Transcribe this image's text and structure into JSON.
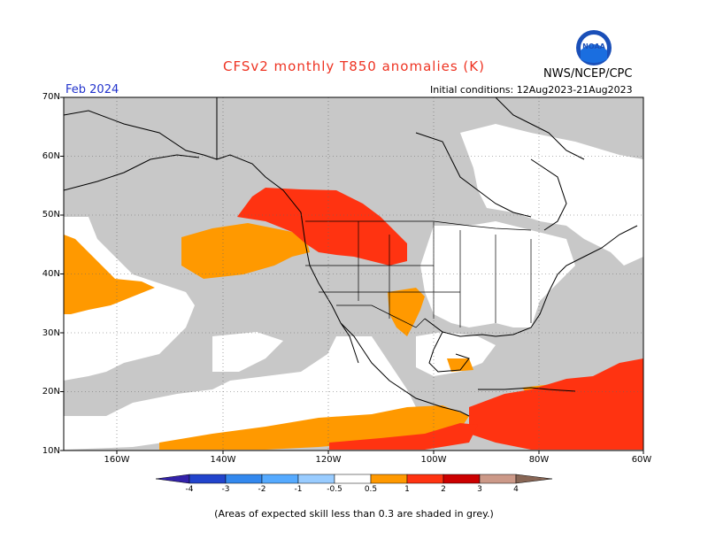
{
  "header": {
    "title": "CFSv2 monthly T850 anomalies (K)",
    "title_color": "#ee3322",
    "agency": "NWS/NCEP/CPC",
    "month": "Feb 2024",
    "month_color": "#2233cc",
    "init": "Initial conditions: 12Aug2023-21Aug2023",
    "logo_text": "NOAA"
  },
  "axes": {
    "lat_labels": [
      "70N",
      "60N",
      "50N",
      "40N",
      "30N",
      "20N",
      "10N"
    ],
    "lon_labels": [
      "160W",
      "140W",
      "120W",
      "100W",
      "80W",
      "60W"
    ]
  },
  "colorbar": {
    "labels": [
      "-4",
      "-3",
      "-2",
      "-1",
      "-0.5",
      "0.5",
      "1",
      "2",
      "3",
      "4"
    ],
    "colors": [
      "#3322aa",
      "#2244cc",
      "#3388ee",
      "#55aaff",
      "#99ccff",
      "#ffffff",
      "#ff9900",
      "#ff3311",
      "#cc0000",
      "#990000",
      "#cc9988",
      "#886655"
    ]
  },
  "map": {
    "grey_color": "#c8c8c8",
    "orange_color": "#ff9900",
    "red_color": "#ff3311"
  },
  "footer": "(Areas of expected skill less than 0.3 are shaded in grey.)"
}
